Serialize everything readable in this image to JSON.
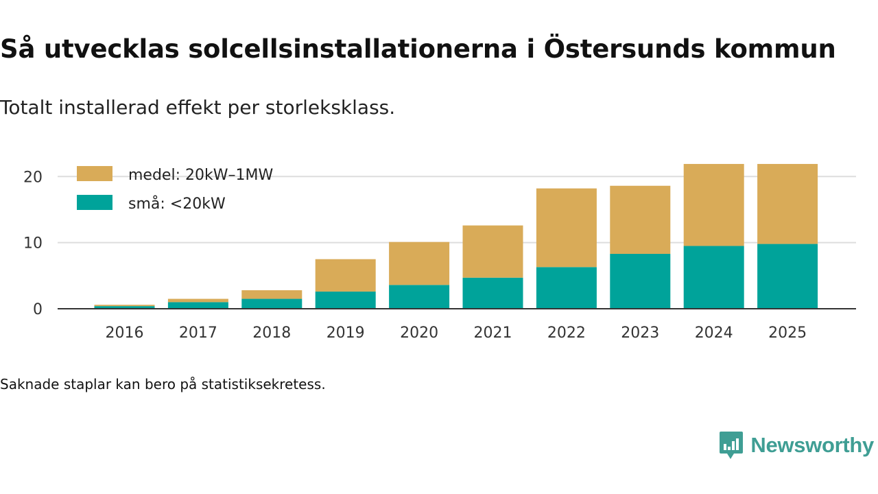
{
  "header": {
    "title": "Så utvecklas solcellsinstallationerna i Östersunds kommun",
    "subtitle": "Totalt installerad effekt per storleksklass."
  },
  "footnote": "Saknade staplar kan bero på statistiksekretess.",
  "brand": {
    "name": "Newsworthy",
    "icon": "newsworthy-logo-icon",
    "color": "#3f9e94"
  },
  "chart_data": {
    "type": "bar",
    "stacked": true,
    "title": "",
    "xlabel": "",
    "ylabel": "",
    "categories": [
      "2016",
      "2017",
      "2018",
      "2019",
      "2020",
      "2021",
      "2022",
      "2023",
      "2024",
      "2025"
    ],
    "series": [
      {
        "name": "små: <20kW",
        "color": "#00a39a",
        "values": [
          0.4,
          1.0,
          1.5,
          2.6,
          3.6,
          4.7,
          6.3,
          8.3,
          9.5,
          9.8
        ]
      },
      {
        "name": "medel: 20kW–1MW",
        "color": "#d9ab58",
        "values": [
          0.2,
          0.5,
          1.3,
          4.9,
          6.5,
          7.9,
          11.9,
          10.3,
          12.4,
          12.1
        ]
      }
    ],
    "ylim": [
      0,
      22
    ],
    "yticks": [
      0,
      10,
      20
    ],
    "grid": true,
    "legend_position": "top-left"
  }
}
